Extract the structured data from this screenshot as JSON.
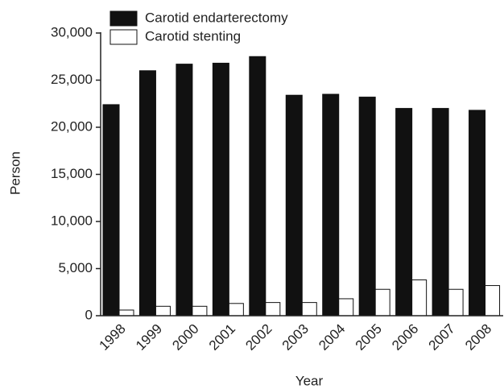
{
  "chart_data": {
    "type": "bar",
    "xlabel": "Year",
    "ylabel": "Person",
    "categories": [
      "1998",
      "1999",
      "2000",
      "2001",
      "2002",
      "2003",
      "2004",
      "2005",
      "2006",
      "2007",
      "2008"
    ],
    "series": [
      {
        "name": "Carotid endarterectomy",
        "color": "#111111",
        "values": [
          22400,
          26000,
          26700,
          26800,
          27500,
          23400,
          23500,
          23200,
          22000,
          22000,
          21800
        ]
      },
      {
        "name": "Carotid stenting",
        "color": "#ffffff",
        "values": [
          600,
          1000,
          1000,
          1300,
          1400,
          1400,
          1800,
          2800,
          3800,
          2800,
          3200
        ]
      }
    ],
    "ylim": [
      0,
      30000
    ],
    "yticks": [
      0,
      {
        "value": 5000,
        "label": "5,000"
      },
      {
        "value": 10000,
        "label": "10,000"
      },
      {
        "value": 15000,
        "label": "15,000"
      },
      {
        "value": 20000,
        "label": "20,000"
      },
      {
        "value": 25000,
        "label": "25,000"
      },
      {
        "value": 30000,
        "label": "30,000"
      }
    ],
    "legend": "top-left"
  }
}
